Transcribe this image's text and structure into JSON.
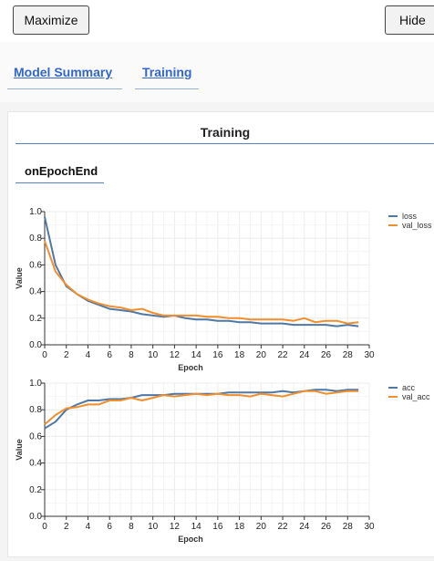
{
  "toolbar": {
    "maximize_label": "Maximize",
    "hide_label": "Hide"
  },
  "tabs": [
    {
      "label": "Model Summary"
    },
    {
      "label": "Training"
    }
  ],
  "panel": {
    "title": "Training",
    "subtab": "onEpochEnd"
  },
  "colors": {
    "series1": "#4e79a7",
    "series2": "#f28e2b"
  },
  "chart_data": [
    {
      "type": "line",
      "title": "",
      "xlabel": "Epoch",
      "ylabel": "Value",
      "xlim": [
        0,
        30
      ],
      "ylim": [
        0,
        1
      ],
      "xticks": [
        "0",
        "2",
        "4",
        "6",
        "8",
        "10",
        "12",
        "14",
        "16",
        "18",
        "20",
        "22",
        "24",
        "26",
        "28",
        "30"
      ],
      "yticks": [
        "0.0",
        "0.2",
        "0.4",
        "0.6",
        "0.8",
        "1.0"
      ],
      "grid": true,
      "legend": "top-right",
      "x": [
        0,
        1,
        2,
        3,
        4,
        5,
        6,
        7,
        8,
        9,
        10,
        11,
        12,
        13,
        14,
        15,
        16,
        17,
        18,
        19,
        20,
        21,
        22,
        23,
        24,
        25,
        26,
        27,
        28,
        29
      ],
      "series": [
        {
          "name": "loss",
          "values": [
            0.96,
            0.6,
            0.44,
            0.38,
            0.33,
            0.3,
            0.27,
            0.26,
            0.25,
            0.23,
            0.22,
            0.21,
            0.22,
            0.2,
            0.19,
            0.19,
            0.18,
            0.18,
            0.17,
            0.17,
            0.16,
            0.16,
            0.16,
            0.15,
            0.15,
            0.15,
            0.15,
            0.14,
            0.15,
            0.14
          ]
        },
        {
          "name": "val_loss",
          "values": [
            0.78,
            0.55,
            0.45,
            0.38,
            0.34,
            0.31,
            0.29,
            0.28,
            0.26,
            0.27,
            0.24,
            0.22,
            0.22,
            0.22,
            0.22,
            0.21,
            0.21,
            0.2,
            0.2,
            0.19,
            0.19,
            0.19,
            0.19,
            0.18,
            0.2,
            0.17,
            0.18,
            0.18,
            0.16,
            0.17
          ]
        }
      ]
    },
    {
      "type": "line",
      "title": "",
      "xlabel": "Epoch",
      "ylabel": "Value",
      "xlim": [
        0,
        30
      ],
      "ylim": [
        0,
        1
      ],
      "xticks": [
        "0",
        "2",
        "4",
        "6",
        "8",
        "10",
        "12",
        "14",
        "16",
        "18",
        "20",
        "22",
        "24",
        "26",
        "28",
        "30"
      ],
      "yticks": [
        "0.0",
        "0.2",
        "0.4",
        "0.6",
        "0.8",
        "1.0"
      ],
      "grid": true,
      "legend": "top-right",
      "x": [
        0,
        1,
        2,
        3,
        4,
        5,
        6,
        7,
        8,
        9,
        10,
        11,
        12,
        13,
        14,
        15,
        16,
        17,
        18,
        19,
        20,
        21,
        22,
        23,
        24,
        25,
        26,
        27,
        28,
        29
      ],
      "series": [
        {
          "name": "acc",
          "values": [
            0.66,
            0.71,
            0.8,
            0.84,
            0.87,
            0.87,
            0.88,
            0.88,
            0.89,
            0.91,
            0.91,
            0.91,
            0.92,
            0.92,
            0.92,
            0.92,
            0.92,
            0.93,
            0.93,
            0.93,
            0.93,
            0.93,
            0.94,
            0.93,
            0.94,
            0.95,
            0.95,
            0.94,
            0.95,
            0.95
          ]
        },
        {
          "name": "val_acc",
          "values": [
            0.69,
            0.76,
            0.81,
            0.82,
            0.84,
            0.84,
            0.87,
            0.87,
            0.89,
            0.87,
            0.89,
            0.91,
            0.9,
            0.91,
            0.92,
            0.91,
            0.92,
            0.91,
            0.91,
            0.9,
            0.92,
            0.91,
            0.9,
            0.92,
            0.94,
            0.94,
            0.92,
            0.93,
            0.94,
            0.94
          ]
        }
      ]
    }
  ]
}
